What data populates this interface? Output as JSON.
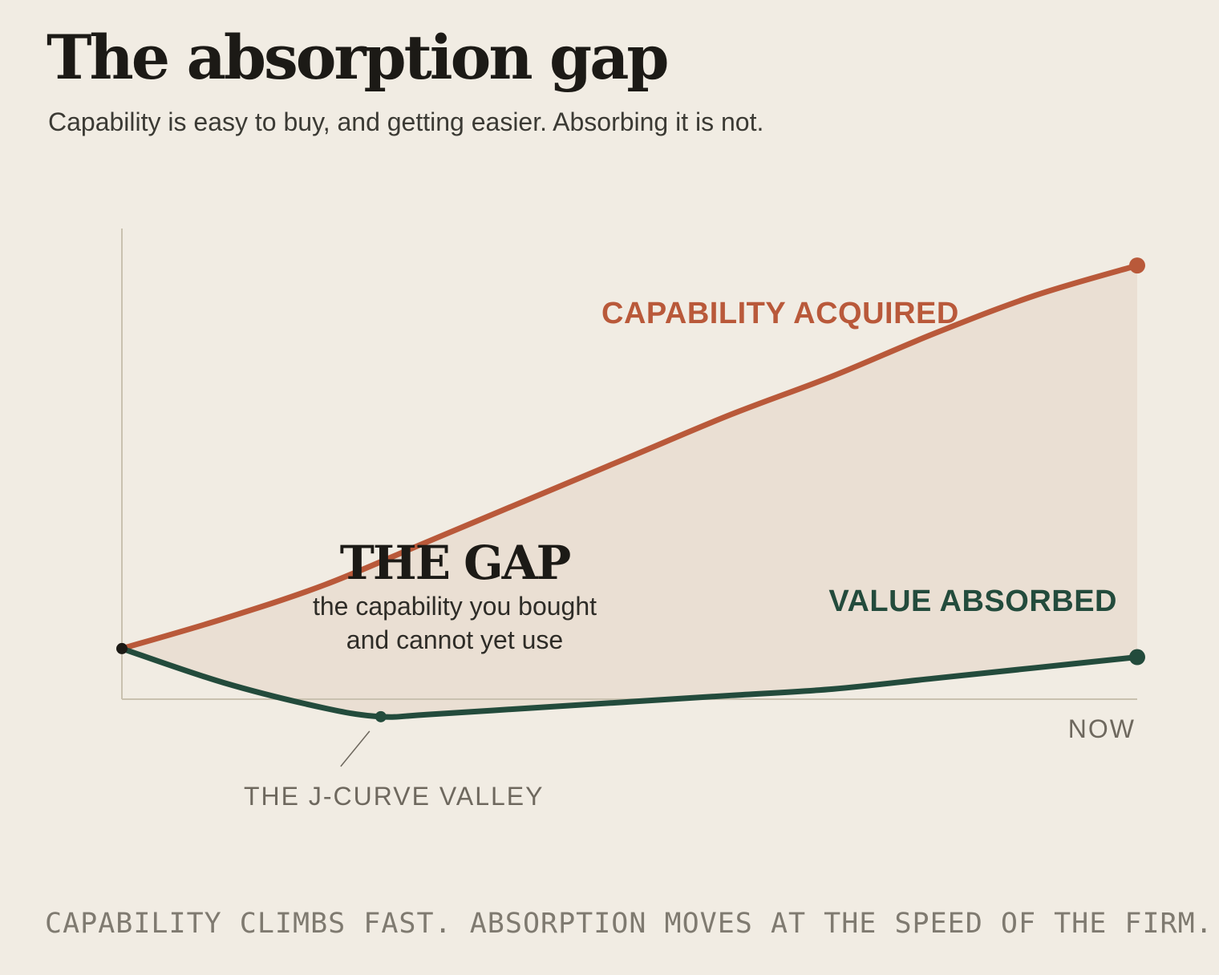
{
  "header": {
    "title": "The absorption gap",
    "subtitle": "Capability is easy to buy, and getting easier. Absorbing it is not."
  },
  "colors": {
    "background": "#f1ece3",
    "capability": "#b9593a",
    "absorbed": "#234b3c",
    "gap_fill": "#eadfd3",
    "axis": "#c9c1af",
    "muted_text": "#6e685e"
  },
  "chart_data": {
    "type": "area",
    "grid": false,
    "xlim": [
      0,
      100
    ],
    "ylim": [
      -10,
      100
    ],
    "x_tick_labels": [
      {
        "x": 100,
        "label": "NOW"
      }
    ],
    "series": [
      {
        "name": "CAPABILITY ACQUIRED",
        "key": "capability",
        "x": [
          0,
          10,
          20,
          30,
          40,
          50,
          60,
          70,
          80,
          90,
          100
        ],
        "y": [
          10,
          17,
          25,
          35,
          45,
          55,
          65,
          74,
          84,
          93,
          100
        ]
      },
      {
        "name": "VALUE ABSORBED",
        "key": "absorbed",
        "x": [
          0,
          10,
          20,
          25.5,
          30,
          40,
          50,
          60,
          70,
          80,
          90,
          100
        ],
        "y": [
          10,
          2,
          -4,
          -6,
          -5.5,
          -4,
          -2.5,
          -1,
          0.5,
          3,
          5.5,
          8
        ]
      }
    ],
    "annotations": [
      {
        "key": "gap_title",
        "text": "THE GAP"
      },
      {
        "key": "gap_line1",
        "text": "the capability you bought"
      },
      {
        "key": "gap_line2",
        "text": "and cannot yet use"
      },
      {
        "key": "valley",
        "text": "THE J-CURVE VALLEY",
        "x": 25.5,
        "y": -6
      }
    ]
  },
  "footer": {
    "text": "CAPABILITY CLIMBS FAST. ABSORPTION MOVES AT THE SPEED OF THE FIRM."
  }
}
